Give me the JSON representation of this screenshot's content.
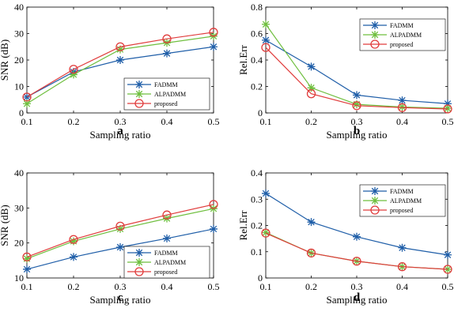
{
  "chart_data": [
    {
      "type": "line",
      "panel_label": "a",
      "xlabel": "Sampling ratio",
      "ylabel": "SNR (dB)",
      "x": [
        0.1,
        0.2,
        0.3,
        0.4,
        0.5
      ],
      "xlim": [
        0.1,
        0.5
      ],
      "ylim": [
        0,
        40
      ],
      "xticks": [
        "0.1",
        "0.2",
        "0.3",
        "0.4",
        "0.5"
      ],
      "yticks": [
        "0",
        "10",
        "20",
        "30",
        "40"
      ],
      "legend_position": "bottom-right",
      "series": [
        {
          "name": "FADMM",
          "color": "#1f5ea8",
          "marker": "star",
          "values": [
            6.0,
            15.5,
            20.0,
            22.5,
            25.0
          ]
        },
        {
          "name": "ALPADMM",
          "color": "#6fbf3f",
          "marker": "star",
          "values": [
            3.5,
            14.5,
            24.0,
            26.5,
            29.0
          ]
        },
        {
          "name": "proposed",
          "color": "#e03c3c",
          "marker": "circle",
          "values": [
            6.0,
            16.5,
            25.0,
            28.0,
            30.5
          ]
        }
      ]
    },
    {
      "type": "line",
      "panel_label": "b",
      "xlabel": "Sampling ratio",
      "ylabel": "Rel.Err",
      "x": [
        0.1,
        0.2,
        0.3,
        0.4,
        0.5
      ],
      "xlim": [
        0.1,
        0.5
      ],
      "ylim": [
        0,
        0.8
      ],
      "xticks": [
        "0.1",
        "0.2",
        "0.3",
        "0.4",
        "0.5"
      ],
      "yticks": [
        "0",
        "0.2",
        "0.4",
        "0.6",
        "0.8"
      ],
      "legend_position": "top-right",
      "series": [
        {
          "name": "FADMM",
          "color": "#1f5ea8",
          "marker": "star",
          "values": [
            0.55,
            0.35,
            0.135,
            0.095,
            0.07
          ]
        },
        {
          "name": "ALPADMM",
          "color": "#6fbf3f",
          "marker": "star",
          "values": [
            0.67,
            0.19,
            0.065,
            0.045,
            0.035
          ]
        },
        {
          "name": "proposed",
          "color": "#e03c3c",
          "marker": "circle",
          "values": [
            0.495,
            0.145,
            0.055,
            0.04,
            0.03
          ]
        }
      ]
    },
    {
      "type": "line",
      "panel_label": "c",
      "xlabel": "Sampling ratio",
      "ylabel": "SNR (dB)",
      "x": [
        0.1,
        0.2,
        0.3,
        0.4,
        0.5
      ],
      "xlim": [
        0.1,
        0.5
      ],
      "ylim": [
        10,
        40
      ],
      "xticks": [
        "0.1",
        "0.2",
        "0.3",
        "0.4",
        "0.5"
      ],
      "yticks": [
        "10",
        "20",
        "30",
        "40"
      ],
      "legend_position": "bottom-right",
      "series": [
        {
          "name": "FADMM",
          "color": "#1f5ea8",
          "marker": "star",
          "values": [
            12.5,
            16.0,
            18.8,
            21.3,
            24.0
          ]
        },
        {
          "name": "ALPADMM",
          "color": "#6fbf3f",
          "marker": "star",
          "values": [
            15.5,
            20.5,
            24.0,
            27.0,
            29.8
          ]
        },
        {
          "name": "proposed",
          "color": "#e03c3c",
          "marker": "circle",
          "values": [
            16.0,
            21.0,
            24.8,
            28.0,
            31.0
          ]
        }
      ]
    },
    {
      "type": "line",
      "panel_label": "d",
      "xlabel": "Sampling ratio",
      "ylabel": "Rel.Err",
      "x": [
        0.1,
        0.2,
        0.3,
        0.4,
        0.5
      ],
      "xlim": [
        0.1,
        0.5
      ],
      "ylim": [
        0,
        0.4
      ],
      "xticks": [
        "0.1",
        "0.2",
        "0.3",
        "0.4",
        "0.5"
      ],
      "yticks": [
        "0",
        "0.1",
        "0.2",
        "0.3",
        "0.4"
      ],
      "legend_position": "top-right",
      "series": [
        {
          "name": "FADMM",
          "color": "#1f5ea8",
          "marker": "star",
          "values": [
            0.322,
            0.213,
            0.157,
            0.115,
            0.088
          ]
        },
        {
          "name": "ALPADMM",
          "color": "#6fbf3f",
          "marker": "star",
          "values": [
            0.173,
            0.095,
            0.064,
            0.043,
            0.033
          ]
        },
        {
          "name": "proposed",
          "color": "#e03c3c",
          "marker": "circle",
          "values": [
            0.171,
            0.095,
            0.064,
            0.043,
            0.033
          ]
        }
      ]
    }
  ]
}
